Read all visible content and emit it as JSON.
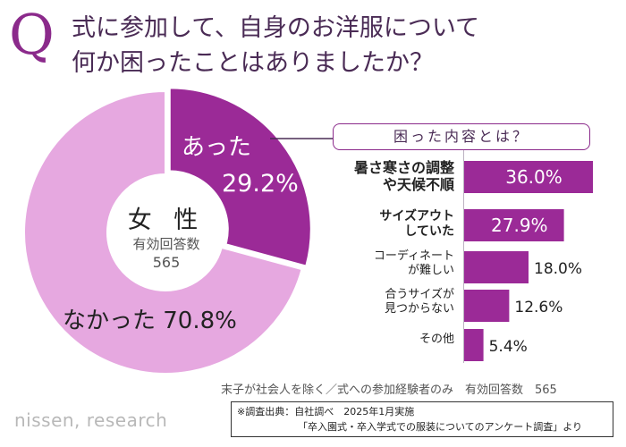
{
  "question": {
    "mark": "Q",
    "line1": "式に参加して、自身のお洋服について",
    "line2": "何か困ったことはありましたか？"
  },
  "center": {
    "title": "女 性",
    "sub": "有効回答数",
    "n": "565"
  },
  "callout": "困った内容とは？",
  "footnote": "末子が社会人を除く／式への参加経験者のみ　有効回答数　565",
  "logo": "nissen, research",
  "source": {
    "line1": "※調査出典：自社調べ　2025年1月実施",
    "line2": "「卒入園式・卒入学式での服装についてのアンケート調査」より"
  },
  "chart_data": [
    {
      "type": "pie",
      "donut": true,
      "categories": [
        "あった",
        "なかった"
      ],
      "values": [
        29.2,
        70.8
      ],
      "value_labels": [
        "29.2%",
        "なかった 70.8%"
      ],
      "colors": [
        "#9b2a97",
        "#e6a8e0"
      ]
    },
    {
      "type": "bar",
      "orientation": "horizontal",
      "categories": [
        [
          "暑さ寒さの調整",
          "や天候不順"
        ],
        [
          "サイズアウト",
          "していた"
        ],
        [
          "コーディネート",
          "が難しい"
        ],
        [
          "合うサイズが",
          "見つからない"
        ],
        [
          "その他"
        ]
      ],
      "values": [
        36.0,
        27.9,
        18.0,
        12.6,
        5.4
      ],
      "value_labels": [
        "36.0%",
        "27.9%",
        "18.0%",
        "12.6%",
        "5.4%"
      ],
      "color": "#9b2a97",
      "xlim": [
        0,
        40
      ]
    }
  ]
}
